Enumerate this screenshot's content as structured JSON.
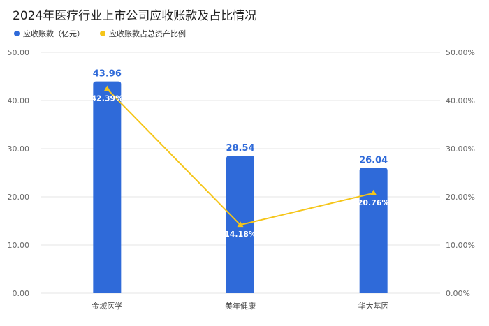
{
  "title": "2024年医疗行业上市公司应收账款及占比情况",
  "legend": [
    {
      "name": "应收账款（亿元）",
      "color": "#2f6ad9"
    },
    {
      "name": "应收账款占总资产比例",
      "color": "#f5c518"
    }
  ],
  "chart_data": {
    "type": "bar",
    "categories": [
      "金域医学",
      "美年健康",
      "华大基因"
    ],
    "series": [
      {
        "name": "应收账款（亿元）",
        "values": [
          43.96,
          28.54,
          26.04
        ],
        "value_labels": [
          "43.96",
          "28.54",
          "26.04"
        ],
        "color": "#2f6ad9",
        "kind": "bar",
        "axis": "left"
      },
      {
        "name": "应收账款占总资产比例",
        "values": [
          42.39,
          14.18,
          20.76
        ],
        "value_labels": [
          "42.39%",
          "14.18%",
          "20.76%"
        ],
        "color": "#f5c518",
        "kind": "line",
        "axis": "right"
      }
    ],
    "ylim_left": [
      0,
      50
    ],
    "ylim_right": [
      0,
      50
    ],
    "left_ticks": [
      "0.00",
      "10.00",
      "20.00",
      "30.00",
      "40.00",
      "50.00"
    ],
    "right_ticks": [
      "0.00%",
      "10.00%",
      "20.00%",
      "30.00%",
      "40.00%",
      "50.00%"
    ],
    "grid": true,
    "legend_position": "top-left"
  }
}
